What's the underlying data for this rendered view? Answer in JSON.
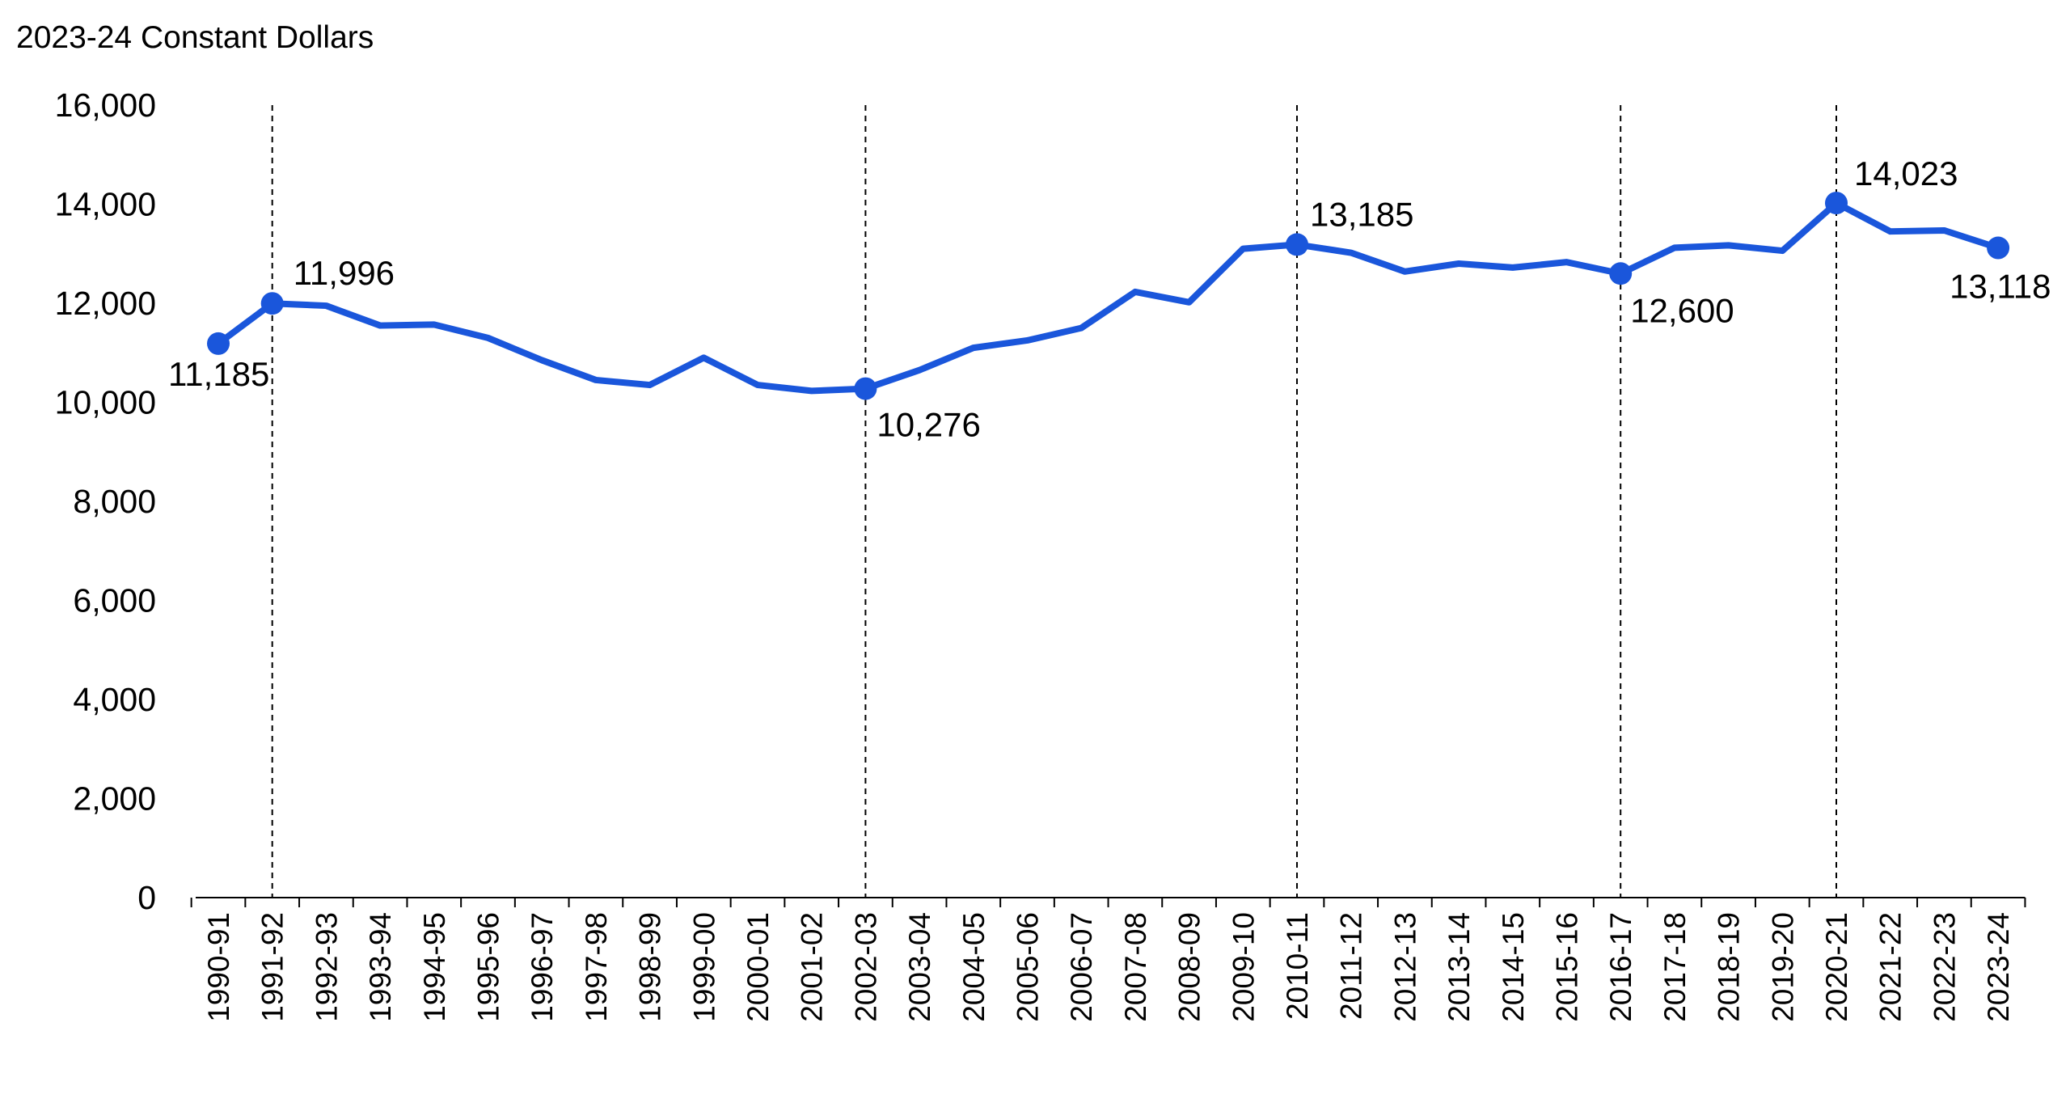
{
  "chart_data": {
    "type": "line",
    "ylabel": "2023-24 Constant Dollars",
    "ylim": [
      0,
      16000
    ],
    "yticks": [
      0,
      2000,
      4000,
      6000,
      8000,
      10000,
      12000,
      14000,
      16000
    ],
    "ytick_labels": [
      "0",
      "2,000",
      "4,000",
      "6,000",
      "8,000",
      "10,000",
      "12,000",
      "14,000",
      "16,000"
    ],
    "grid": false,
    "categories": [
      "1990-91",
      "1991-92",
      "1992-93",
      "1993-94",
      "1994-95",
      "1995-96",
      "1996-97",
      "1997-98",
      "1998-99",
      "1999-00",
      "2000-01",
      "2001-02",
      "2002-03",
      "2003-04",
      "2004-05",
      "2005-06",
      "2006-07",
      "2007-08",
      "2008-09",
      "2009-10",
      "2010-11",
      "2011-12",
      "2012-13",
      "2013-14",
      "2014-15",
      "2015-16",
      "2016-17",
      "2017-18",
      "2018-19",
      "2019-20",
      "2020-21",
      "2021-22",
      "2022-23",
      "2023-24"
    ],
    "series": [
      {
        "color": "#1A56DB",
        "values": [
          11185,
          11996,
          11950,
          11550,
          11570,
          11300,
          10850,
          10450,
          10350,
          10900,
          10350,
          10230,
          10276,
          10650,
          11100,
          11250,
          11500,
          12230,
          12020,
          13100,
          13185,
          13020,
          12640,
          12800,
          12720,
          12830,
          12600,
          13120,
          13170,
          13060,
          14023,
          13450,
          13470,
          13118
        ]
      }
    ],
    "highlights": [
      {
        "index": 0,
        "label": "11,185"
      },
      {
        "index": 1,
        "label": "11,996"
      },
      {
        "index": 12,
        "label": "10,276"
      },
      {
        "index": 20,
        "label": "13,185"
      },
      {
        "index": 26,
        "label": "12,600"
      },
      {
        "index": 30,
        "label": "14,023"
      },
      {
        "index": 33,
        "label": "13,118"
      }
    ],
    "reference_lines_at": [
      "1991-92",
      "2002-03",
      "2010-11",
      "2016-17",
      "2020-21"
    ]
  }
}
